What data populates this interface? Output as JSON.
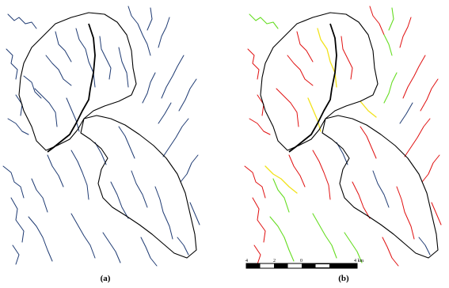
{
  "panels": [
    {
      "id": "a",
      "caption": "(a)"
    },
    {
      "id": "b",
      "caption": "(b)"
    }
  ],
  "scale_bar": {
    "labels": [
      "4",
      "2",
      "0",
      "4 km"
    ]
  },
  "colors": {
    "boundary": "#000000",
    "network_a": "#1f3b73",
    "main_channel": "#000000",
    "class_red": "#e01010",
    "class_green": "#66dd22",
    "class_yellow": "#f2e21a",
    "class_blue": "#1f3b73"
  }
}
